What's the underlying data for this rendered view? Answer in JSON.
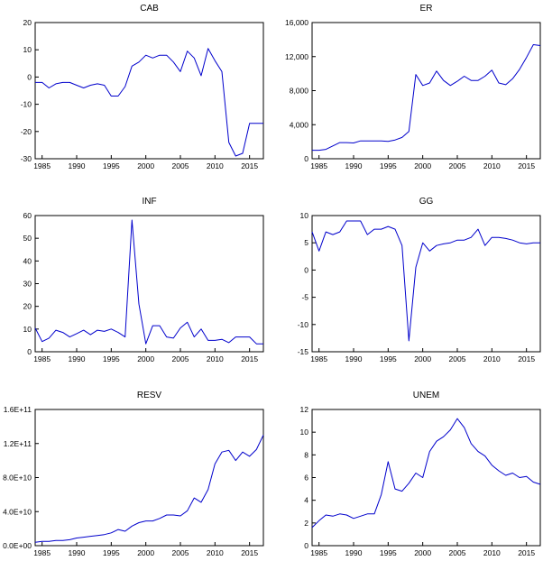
{
  "chart_data": [
    {
      "type": "line",
      "title": "CAB",
      "line_color": "#0000cc",
      "x": [
        1984,
        1985,
        1986,
        1987,
        1988,
        1989,
        1990,
        1991,
        1992,
        1993,
        1994,
        1995,
        1996,
        1997,
        1998,
        1999,
        2000,
        2001,
        2002,
        2003,
        2004,
        2005,
        2006,
        2007,
        2008,
        2009,
        2010,
        2011,
        2012,
        2013,
        2014,
        2015,
        2016,
        2017
      ],
      "values": [
        -2,
        -2,
        -4,
        -2.5,
        -2,
        -2,
        -3,
        -4,
        -3,
        -2.5,
        -3,
        -7,
        -7,
        -3.5,
        4,
        5.5,
        8,
        7,
        8,
        8,
        5.5,
        2,
        9.5,
        7,
        0.5,
        10.5,
        6,
        2,
        -24,
        -29,
        -28,
        -17,
        -17,
        -17
      ],
      "ylim": [
        -30,
        20
      ],
      "yticks": [
        "20",
        "10",
        "0",
        "-10",
        "-20",
        "-30"
      ],
      "ytick_values": [
        20,
        10,
        0,
        -10,
        -20,
        -30
      ],
      "xlim": [
        1984,
        2017
      ],
      "xticks": [
        "1985",
        "1990",
        "1995",
        "2000",
        "2005",
        "2010",
        "2015"
      ],
      "xtick_values": [
        1985,
        1990,
        1995,
        2000,
        2005,
        2010,
        2015
      ]
    },
    {
      "type": "line",
      "title": "ER",
      "line_color": "#0000cc",
      "x": [
        1984,
        1985,
        1986,
        1987,
        1988,
        1989,
        1990,
        1991,
        1992,
        1993,
        1994,
        1995,
        1996,
        1997,
        1998,
        1999,
        2000,
        2001,
        2002,
        2003,
        2004,
        2005,
        2006,
        2007,
        2008,
        2009,
        2010,
        2011,
        2012,
        2013,
        2014,
        2015,
        2016,
        2017
      ],
      "values": [
        1000,
        1000,
        1100,
        1500,
        1900,
        1900,
        1850,
        2100,
        2100,
        2100,
        2100,
        2050,
        2200,
        2500,
        3200,
        9900,
        8600,
        8900,
        10300,
        9200,
        8600,
        9100,
        9700,
        9200,
        9200,
        9700,
        10400,
        8900,
        8700,
        9400,
        10500,
        11900,
        13400,
        13300
      ],
      "ylim": [
        0,
        16000
      ],
      "yticks": [
        "16,000",
        "12,000",
        "8,000",
        "4,000",
        "0"
      ],
      "ytick_values": [
        16000,
        12000,
        8000,
        4000,
        0
      ],
      "xlim": [
        1984,
        2017
      ],
      "xticks": [
        "1985",
        "1990",
        "1995",
        "2000",
        "2005",
        "2010",
        "2015"
      ],
      "xtick_values": [
        1985,
        1990,
        1995,
        2000,
        2005,
        2010,
        2015
      ]
    },
    {
      "type": "line",
      "title": "INF",
      "line_color": "#0000cc",
      "x": [
        1984,
        1985,
        1986,
        1987,
        1988,
        1989,
        1990,
        1991,
        1992,
        1993,
        1994,
        1995,
        1996,
        1997,
        1998,
        1999,
        2000,
        2001,
        2002,
        2003,
        2004,
        2005,
        2006,
        2007,
        2008,
        2009,
        2010,
        2011,
        2012,
        2013,
        2014,
        2015,
        2016,
        2017
      ],
      "values": [
        10.5,
        4.5,
        6,
        9.5,
        8.5,
        6.5,
        8,
        9.5,
        7.5,
        9.5,
        9,
        10,
        8.5,
        6.5,
        58,
        21,
        3.5,
        11.5,
        11.5,
        6.5,
        6,
        10.5,
        13,
        6.5,
        10,
        5,
        5,
        5.5,
        4,
        6.5,
        6.5,
        6.5,
        3.5,
        3.5
      ],
      "ylim": [
        0,
        60
      ],
      "yticks": [
        "60",
        "50",
        "40",
        "30",
        "20",
        "10",
        "0"
      ],
      "ytick_values": [
        60,
        50,
        40,
        30,
        20,
        10,
        0
      ],
      "xlim": [
        1984,
        2017
      ],
      "xticks": [
        "1985",
        "1990",
        "1995",
        "2000",
        "2005",
        "2010",
        "2015"
      ],
      "xtick_values": [
        1985,
        1990,
        1995,
        2000,
        2005,
        2010,
        2015
      ]
    },
    {
      "type": "line",
      "title": "GG",
      "line_color": "#0000cc",
      "x": [
        1984,
        1985,
        1986,
        1987,
        1988,
        1989,
        1990,
        1991,
        1992,
        1993,
        1994,
        1995,
        1996,
        1997,
        1998,
        1999,
        2000,
        2001,
        2002,
        2003,
        2004,
        2005,
        2006,
        2007,
        2008,
        2009,
        2010,
        2011,
        2012,
        2013,
        2014,
        2015,
        2016,
        2017
      ],
      "values": [
        7,
        3.5,
        7,
        6.5,
        7,
        9,
        9,
        9,
        6.5,
        7.5,
        7.5,
        8,
        7.5,
        4.5,
        -13,
        0.5,
        5,
        3.5,
        4.5,
        4.8,
        5,
        5.5,
        5.5,
        6,
        7.5,
        4.5,
        6,
        6,
        5.8,
        5.5,
        5,
        4.8,
        5,
        5
      ],
      "ylim": [
        -15,
        10
      ],
      "yticks": [
        "10",
        "5",
        "0",
        "-5",
        "-10",
        "-15"
      ],
      "ytick_values": [
        10,
        5,
        0,
        -5,
        -10,
        -15
      ],
      "xlim": [
        1984,
        2017
      ],
      "xticks": [
        "1985",
        "1990",
        "1995",
        "2000",
        "2005",
        "2010",
        "2015"
      ],
      "xtick_values": [
        1985,
        1990,
        1995,
        2000,
        2005,
        2010,
        2015
      ]
    },
    {
      "type": "line",
      "title": "RESV",
      "line_color": "#0000cc",
      "x": [
        1984,
        1985,
        1986,
        1987,
        1988,
        1989,
        1990,
        1991,
        1992,
        1993,
        1994,
        1995,
        1996,
        1997,
        1998,
        1999,
        2000,
        2001,
        2002,
        2003,
        2004,
        2005,
        2006,
        2007,
        2008,
        2009,
        2010,
        2011,
        2012,
        2013,
        2014,
        2015,
        2016,
        2017
      ],
      "values": [
        4000000000.0,
        5000000000.0,
        5000000000.0,
        6000000000.0,
        6000000000.0,
        7000000000.0,
        9000000000.0,
        10000000000.0,
        11000000000.0,
        12000000000.0,
        13000000000.0,
        15000000000.0,
        19000000000.0,
        17000000000.0,
        23000000000.0,
        27000000000.0,
        29000000000.0,
        29000000000.0,
        32000000000.0,
        36000000000.0,
        36000000000.0,
        35000000000.0,
        41000000000.0,
        56000000000.0,
        51000000000.0,
        66000000000.0,
        96000000000.0,
        110000000000.0,
        112000000000.0,
        100000000000.0,
        110000000000.0,
        105000000000.0,
        113000000000.0,
        130000000000.0
      ],
      "ylim": [
        0,
        160000000000.0
      ],
      "yticks": [
        "1.6E+11",
        "1.2E+11",
        "8.0E+10",
        "4.0E+10",
        "0.0E+00"
      ],
      "ytick_values": [
        160000000000.0,
        120000000000.0,
        80000000000.0,
        40000000000.0,
        0
      ],
      "xlim": [
        1984,
        2017
      ],
      "xticks": [
        "1985",
        "1990",
        "1995",
        "2000",
        "2005",
        "2010",
        "2015"
      ],
      "xtick_values": [
        1985,
        1990,
        1995,
        2000,
        2005,
        2010,
        2015
      ]
    },
    {
      "type": "line",
      "title": "UNEM",
      "line_color": "#0000cc",
      "x": [
        1984,
        1985,
        1986,
        1987,
        1988,
        1989,
        1990,
        1991,
        1992,
        1993,
        1994,
        1995,
        1996,
        1997,
        1998,
        1999,
        2000,
        2001,
        2002,
        2003,
        2004,
        2005,
        2006,
        2007,
        2008,
        2009,
        2010,
        2011,
        2012,
        2013,
        2014,
        2015,
        2016,
        2017
      ],
      "values": [
        1.6,
        2.2,
        2.7,
        2.6,
        2.8,
        2.7,
        2.4,
        2.6,
        2.8,
        2.8,
        4.5,
        7.4,
        5,
        4.8,
        5.5,
        6.4,
        6,
        8.3,
        9.2,
        9.6,
        10.2,
        11.2,
        10.4,
        9,
        8.3,
        7.9,
        7.1,
        6.6,
        6.2,
        6.4,
        6,
        6.1,
        5.6,
        5.4
      ],
      "ylim": [
        0,
        12
      ],
      "yticks": [
        "12",
        "10",
        "8",
        "6",
        "4",
        "2",
        "0"
      ],
      "ytick_values": [
        12,
        10,
        8,
        6,
        4,
        2,
        0
      ],
      "xlim": [
        1984,
        2017
      ],
      "xticks": [
        "1985",
        "1990",
        "1995",
        "2000",
        "2005",
        "2010",
        "2015"
      ],
      "xtick_values": [
        1985,
        1990,
        1995,
        2000,
        2005,
        2010,
        2015
      ]
    }
  ]
}
